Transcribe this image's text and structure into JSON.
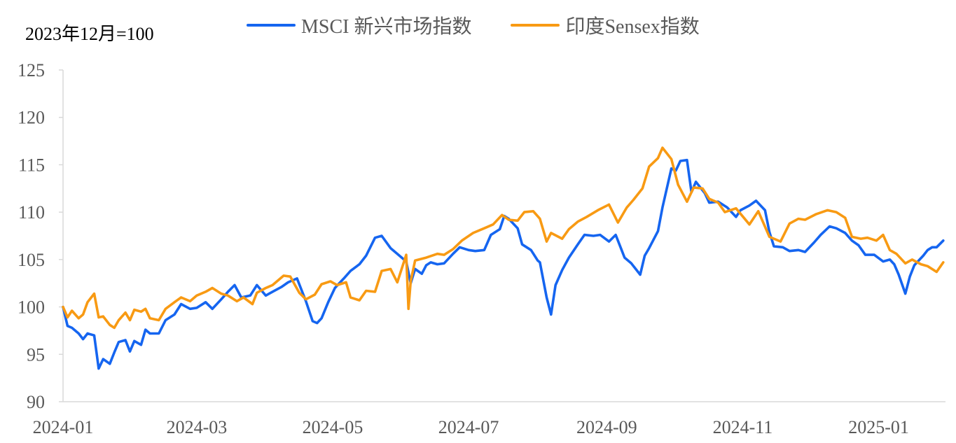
{
  "chart_data": {
    "type": "line",
    "title": "",
    "unit_label": "2023年12月=100",
    "xlabel": "",
    "ylabel": "",
    "ylim": [
      90,
      125
    ],
    "yticks": [
      90,
      95,
      100,
      105,
      110,
      115,
      120,
      125
    ],
    "xlim": [
      "2024-01-01",
      "2025-01-31"
    ],
    "x_ticks": [
      "2024-01",
      "2024-03",
      "2024-05",
      "2024-07",
      "2024-09",
      "2024-11",
      "2025-01"
    ],
    "grid": false,
    "legend_position": "top",
    "series": [
      {
        "name": "MSCI 新兴市场指数",
        "color": "#1565F0",
        "points": [
          [
            "2024-01-01",
            100.0
          ],
          [
            "2024-01-03",
            98.0
          ],
          [
            "2024-01-05",
            97.8
          ],
          [
            "2024-01-08",
            97.2
          ],
          [
            "2024-01-10",
            96.6
          ],
          [
            "2024-01-12",
            97.2
          ],
          [
            "2024-01-15",
            97.0
          ],
          [
            "2024-01-17",
            93.5
          ],
          [
            "2024-01-19",
            94.5
          ],
          [
            "2024-01-22",
            94.0
          ],
          [
            "2024-01-24",
            95.2
          ],
          [
            "2024-01-26",
            96.3
          ],
          [
            "2024-01-29",
            96.5
          ],
          [
            "2024-01-31",
            95.3
          ],
          [
            "2024-02-02",
            96.4
          ],
          [
            "2024-02-05",
            96.0
          ],
          [
            "2024-02-07",
            97.6
          ],
          [
            "2024-02-09",
            97.2
          ],
          [
            "2024-02-13",
            97.2
          ],
          [
            "2024-02-16",
            98.6
          ],
          [
            "2024-02-20",
            99.2
          ],
          [
            "2024-02-23",
            100.3
          ],
          [
            "2024-02-27",
            99.8
          ],
          [
            "2024-03-01",
            99.9
          ],
          [
            "2024-03-05",
            100.5
          ],
          [
            "2024-03-08",
            99.8
          ],
          [
            "2024-03-12",
            100.8
          ],
          [
            "2024-03-15",
            101.6
          ],
          [
            "2024-03-18",
            102.3
          ],
          [
            "2024-03-21",
            101.0
          ],
          [
            "2024-03-25",
            101.2
          ],
          [
            "2024-03-28",
            102.3
          ],
          [
            "2024-04-01",
            101.2
          ],
          [
            "2024-04-04",
            101.6
          ],
          [
            "2024-04-08",
            102.1
          ],
          [
            "2024-04-11",
            102.6
          ],
          [
            "2024-04-15",
            103.0
          ],
          [
            "2024-04-18",
            101.2
          ],
          [
            "2024-04-19",
            100.6
          ],
          [
            "2024-04-22",
            98.5
          ],
          [
            "2024-04-24",
            98.3
          ],
          [
            "2024-04-26",
            98.8
          ],
          [
            "2024-04-29",
            100.5
          ],
          [
            "2024-05-02",
            102.0
          ],
          [
            "2024-05-06",
            103.0
          ],
          [
            "2024-05-09",
            103.8
          ],
          [
            "2024-05-13",
            104.5
          ],
          [
            "2024-05-16",
            105.4
          ],
          [
            "2024-05-20",
            107.3
          ],
          [
            "2024-05-23",
            107.5
          ],
          [
            "2024-05-27",
            106.2
          ],
          [
            "2024-05-30",
            105.6
          ],
          [
            "2024-06-03",
            104.8
          ],
          [
            "2024-06-05",
            102.5
          ],
          [
            "2024-06-07",
            104.0
          ],
          [
            "2024-06-10",
            103.5
          ],
          [
            "2024-06-12",
            104.4
          ],
          [
            "2024-06-14",
            104.7
          ],
          [
            "2024-06-17",
            104.5
          ],
          [
            "2024-06-20",
            104.6
          ],
          [
            "2024-06-24",
            105.6
          ],
          [
            "2024-06-27",
            106.3
          ],
          [
            "2024-07-01",
            106.0
          ],
          [
            "2024-07-04",
            105.9
          ],
          [
            "2024-07-08",
            106.0
          ],
          [
            "2024-07-11",
            107.6
          ],
          [
            "2024-07-15",
            108.2
          ],
          [
            "2024-07-17",
            109.6
          ],
          [
            "2024-07-19",
            109.3
          ],
          [
            "2024-07-23",
            108.3
          ],
          [
            "2024-07-25",
            106.6
          ],
          [
            "2024-07-29",
            106.0
          ],
          [
            "2024-08-01",
            104.9
          ],
          [
            "2024-08-02",
            104.7
          ],
          [
            "2024-08-05",
            101.0
          ],
          [
            "2024-08-07",
            99.2
          ],
          [
            "2024-08-09",
            102.3
          ],
          [
            "2024-08-12",
            103.9
          ],
          [
            "2024-08-15",
            105.2
          ],
          [
            "2024-08-19",
            106.6
          ],
          [
            "2024-08-22",
            107.6
          ],
          [
            "2024-08-26",
            107.5
          ],
          [
            "2024-08-29",
            107.6
          ],
          [
            "2024-09-02",
            106.9
          ],
          [
            "2024-09-05",
            107.6
          ],
          [
            "2024-09-09",
            105.2
          ],
          [
            "2024-09-12",
            104.6
          ],
          [
            "2024-09-16",
            103.4
          ],
          [
            "2024-09-18",
            105.4
          ],
          [
            "2024-09-20",
            106.2
          ],
          [
            "2024-09-24",
            108.0
          ],
          [
            "2024-09-26",
            110.5
          ],
          [
            "2024-09-30",
            114.6
          ],
          [
            "2024-10-02",
            114.4
          ],
          [
            "2024-10-04",
            115.4
          ],
          [
            "2024-10-07",
            115.5
          ],
          [
            "2024-10-09",
            112.1
          ],
          [
            "2024-10-11",
            113.2
          ],
          [
            "2024-10-15",
            112.0
          ],
          [
            "2024-10-17",
            111.0
          ],
          [
            "2024-10-21",
            111.1
          ],
          [
            "2024-10-25",
            110.5
          ],
          [
            "2024-10-29",
            109.5
          ],
          [
            "2024-10-31",
            110.2
          ],
          [
            "2024-11-04",
            110.7
          ],
          [
            "2024-11-07",
            111.2
          ],
          [
            "2024-11-11",
            110.2
          ],
          [
            "2024-11-13",
            107.9
          ],
          [
            "2024-11-15",
            106.4
          ],
          [
            "2024-11-19",
            106.3
          ],
          [
            "2024-11-22",
            105.9
          ],
          [
            "2024-11-26",
            106.0
          ],
          [
            "2024-11-29",
            105.8
          ],
          [
            "2024-12-03",
            106.8
          ],
          [
            "2024-12-06",
            107.6
          ],
          [
            "2024-12-10",
            108.5
          ],
          [
            "2024-12-13",
            108.3
          ],
          [
            "2024-12-17",
            107.8
          ],
          [
            "2024-12-20",
            107.0
          ],
          [
            "2024-12-23",
            106.5
          ],
          [
            "2024-12-26",
            105.5
          ],
          [
            "2024-12-30",
            105.5
          ],
          [
            "2025-01-03",
            104.8
          ],
          [
            "2025-01-06",
            105.0
          ],
          [
            "2025-01-08",
            104.5
          ],
          [
            "2025-01-10",
            103.4
          ],
          [
            "2025-01-13",
            101.4
          ],
          [
            "2025-01-15",
            103.2
          ],
          [
            "2025-01-17",
            104.4
          ],
          [
            "2025-01-21",
            105.4
          ],
          [
            "2025-01-23",
            106.0
          ],
          [
            "2025-01-25",
            106.3
          ],
          [
            "2025-01-27",
            106.3
          ],
          [
            "2025-01-30",
            107.0
          ]
        ]
      },
      {
        "name": "印度Sensex指数",
        "color": "#F89A13",
        "points": [
          [
            "2024-01-01",
            100.0
          ],
          [
            "2024-01-03",
            98.9
          ],
          [
            "2024-01-05",
            99.6
          ],
          [
            "2024-01-08",
            98.8
          ],
          [
            "2024-01-10",
            99.2
          ],
          [
            "2024-01-12",
            100.5
          ],
          [
            "2024-01-15",
            101.4
          ],
          [
            "2024-01-17",
            98.9
          ],
          [
            "2024-01-19",
            99.0
          ],
          [
            "2024-01-22",
            98.1
          ],
          [
            "2024-01-24",
            97.8
          ],
          [
            "2024-01-26",
            98.6
          ],
          [
            "2024-01-29",
            99.4
          ],
          [
            "2024-01-31",
            98.6
          ],
          [
            "2024-02-02",
            99.7
          ],
          [
            "2024-02-05",
            99.5
          ],
          [
            "2024-02-07",
            99.8
          ],
          [
            "2024-02-09",
            98.8
          ],
          [
            "2024-02-13",
            98.6
          ],
          [
            "2024-02-16",
            99.8
          ],
          [
            "2024-02-20",
            100.5
          ],
          [
            "2024-02-23",
            101.0
          ],
          [
            "2024-02-27",
            100.6
          ],
          [
            "2024-03-01",
            101.2
          ],
          [
            "2024-03-05",
            101.6
          ],
          [
            "2024-03-08",
            102.0
          ],
          [
            "2024-03-12",
            101.4
          ],
          [
            "2024-03-15",
            101.2
          ],
          [
            "2024-03-19",
            100.6
          ],
          [
            "2024-03-22",
            101.0
          ],
          [
            "2024-03-26",
            100.3
          ],
          [
            "2024-03-28",
            101.5
          ],
          [
            "2024-04-01",
            102.0
          ],
          [
            "2024-04-04",
            102.3
          ],
          [
            "2024-04-09",
            103.3
          ],
          [
            "2024-04-12",
            103.2
          ],
          [
            "2024-04-16",
            101.5
          ],
          [
            "2024-04-19",
            100.8
          ],
          [
            "2024-04-23",
            101.3
          ],
          [
            "2024-04-26",
            102.4
          ],
          [
            "2024-04-30",
            102.7
          ],
          [
            "2024-05-03",
            102.3
          ],
          [
            "2024-05-07",
            102.6
          ],
          [
            "2024-05-09",
            101.0
          ],
          [
            "2024-05-13",
            100.7
          ],
          [
            "2024-05-16",
            101.7
          ],
          [
            "2024-05-20",
            101.6
          ],
          [
            "2024-05-23",
            103.8
          ],
          [
            "2024-05-27",
            104.0
          ],
          [
            "2024-05-30",
            102.6
          ],
          [
            "2024-06-03",
            105.5
          ],
          [
            "2024-06-04",
            99.8
          ],
          [
            "2024-06-05",
            102.7
          ],
          [
            "2024-06-07",
            104.9
          ],
          [
            "2024-06-12",
            105.2
          ],
          [
            "2024-06-17",
            105.6
          ],
          [
            "2024-06-20",
            105.5
          ],
          [
            "2024-06-24",
            106.1
          ],
          [
            "2024-06-28",
            107.0
          ],
          [
            "2024-07-03",
            107.8
          ],
          [
            "2024-07-08",
            108.3
          ],
          [
            "2024-07-12",
            108.7
          ],
          [
            "2024-07-16",
            109.7
          ],
          [
            "2024-07-19",
            109.2
          ],
          [
            "2024-07-23",
            109.1
          ],
          [
            "2024-07-26",
            110.0
          ],
          [
            "2024-07-30",
            110.1
          ],
          [
            "2024-08-02",
            109.3
          ],
          [
            "2024-08-05",
            106.9
          ],
          [
            "2024-08-07",
            107.8
          ],
          [
            "2024-08-12",
            107.2
          ],
          [
            "2024-08-15",
            108.2
          ],
          [
            "2024-08-19",
            109.0
          ],
          [
            "2024-08-23",
            109.5
          ],
          [
            "2024-08-28",
            110.2
          ],
          [
            "2024-09-02",
            110.8
          ],
          [
            "2024-09-06",
            108.9
          ],
          [
            "2024-09-10",
            110.5
          ],
          [
            "2024-09-13",
            111.3
          ],
          [
            "2024-09-17",
            112.5
          ],
          [
            "2024-09-20",
            114.8
          ],
          [
            "2024-09-24",
            115.7
          ],
          [
            "2024-09-26",
            116.8
          ],
          [
            "2024-09-30",
            115.6
          ],
          [
            "2024-10-03",
            112.9
          ],
          [
            "2024-10-07",
            111.1
          ],
          [
            "2024-10-10",
            112.6
          ],
          [
            "2024-10-14",
            112.5
          ],
          [
            "2024-10-17",
            111.4
          ],
          [
            "2024-10-21",
            111.0
          ],
          [
            "2024-10-24",
            110.0
          ],
          [
            "2024-10-29",
            110.4
          ],
          [
            "2024-11-04",
            108.7
          ],
          [
            "2024-11-08",
            110.1
          ],
          [
            "2024-11-13",
            107.4
          ],
          [
            "2024-11-18",
            106.9
          ],
          [
            "2024-11-22",
            108.8
          ],
          [
            "2024-11-26",
            109.3
          ],
          [
            "2024-11-29",
            109.2
          ],
          [
            "2024-12-04",
            109.8
          ],
          [
            "2024-12-09",
            110.2
          ],
          [
            "2024-12-13",
            110.0
          ],
          [
            "2024-12-17",
            109.4
          ],
          [
            "2024-12-20",
            107.4
          ],
          [
            "2024-12-24",
            107.2
          ],
          [
            "2024-12-27",
            107.3
          ],
          [
            "2024-12-31",
            107.0
          ],
          [
            "2025-01-03",
            107.6
          ],
          [
            "2025-01-06",
            106.0
          ],
          [
            "2025-01-09",
            105.6
          ],
          [
            "2025-01-13",
            104.6
          ],
          [
            "2025-01-16",
            105.0
          ],
          [
            "2025-01-20",
            104.5
          ],
          [
            "2025-01-23",
            104.3
          ],
          [
            "2025-01-27",
            103.7
          ],
          [
            "2025-01-30",
            104.7
          ]
        ]
      }
    ]
  }
}
